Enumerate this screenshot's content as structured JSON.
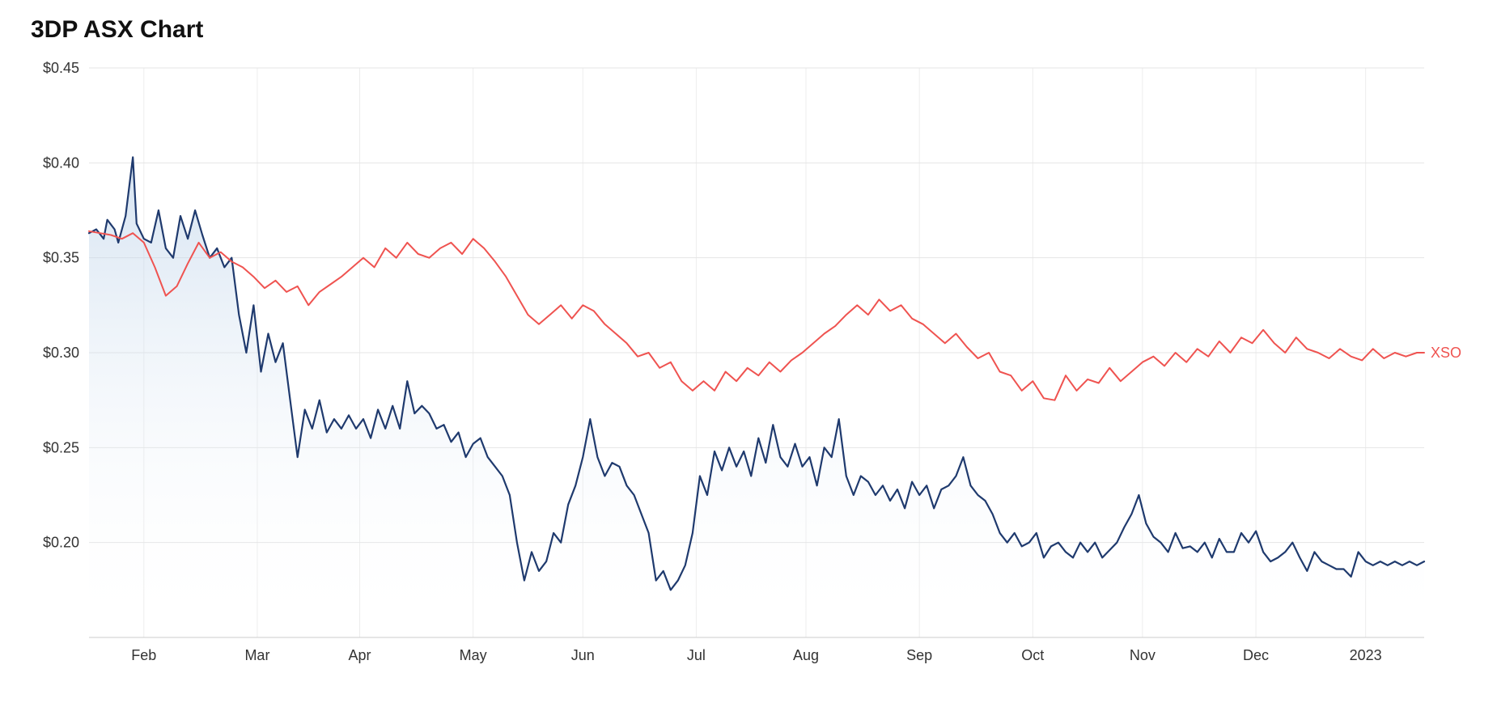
{
  "title": "3DP ASX Chart",
  "chart": {
    "type": "line",
    "background_color": "#ffffff",
    "grid_color": "#e5e5e5",
    "axis_color": "#cccccc",
    "tick_font_size": 18,
    "tick_color": "#333333",
    "y_axis": {
      "min": 0.15,
      "max": 0.45,
      "ticks": [
        0.2,
        0.25,
        0.3,
        0.35,
        0.4,
        0.45
      ],
      "tick_labels": [
        "$0.20",
        "$0.25",
        "$0.30",
        "$0.35",
        "$0.40",
        "$0.45"
      ]
    },
    "x_axis": {
      "min": 0,
      "max": 365,
      "ticks": [
        15,
        46,
        74,
        105,
        135,
        166,
        196,
        227,
        258,
        288,
        319,
        349
      ],
      "tick_labels": [
        "Feb",
        "Mar",
        "Apr",
        "May",
        "Jun",
        "Jul",
        "Aug",
        "Sep",
        "Oct",
        "Nov",
        "Dec",
        "2023"
      ]
    },
    "series": [
      {
        "name": "3DP",
        "label": "",
        "type": "area",
        "line_color": "#1f3a6e",
        "line_width": 2.2,
        "fill_top_color": "#b3cce6",
        "fill_bottom_color": "#ffffff",
        "fill_opacity_top": 0.55,
        "fill_opacity_bottom": 0.0,
        "data": [
          [
            0,
            0.363
          ],
          [
            2,
            0.365
          ],
          [
            4,
            0.36
          ],
          [
            5,
            0.37
          ],
          [
            7,
            0.365
          ],
          [
            8,
            0.358
          ],
          [
            10,
            0.372
          ],
          [
            12,
            0.403
          ],
          [
            13,
            0.368
          ],
          [
            15,
            0.36
          ],
          [
            17,
            0.358
          ],
          [
            19,
            0.375
          ],
          [
            21,
            0.355
          ],
          [
            23,
            0.35
          ],
          [
            25,
            0.372
          ],
          [
            27,
            0.36
          ],
          [
            29,
            0.375
          ],
          [
            31,
            0.362
          ],
          [
            33,
            0.35
          ],
          [
            35,
            0.355
          ],
          [
            37,
            0.345
          ],
          [
            39,
            0.35
          ],
          [
            41,
            0.32
          ],
          [
            43,
            0.3
          ],
          [
            45,
            0.325
          ],
          [
            47,
            0.29
          ],
          [
            49,
            0.31
          ],
          [
            51,
            0.295
          ],
          [
            53,
            0.305
          ],
          [
            55,
            0.275
          ],
          [
            57,
            0.245
          ],
          [
            59,
            0.27
          ],
          [
            61,
            0.26
          ],
          [
            63,
            0.275
          ],
          [
            65,
            0.258
          ],
          [
            67,
            0.265
          ],
          [
            69,
            0.26
          ],
          [
            71,
            0.267
          ],
          [
            73,
            0.26
          ],
          [
            75,
            0.265
          ],
          [
            77,
            0.255
          ],
          [
            79,
            0.27
          ],
          [
            81,
            0.26
          ],
          [
            83,
            0.272
          ],
          [
            85,
            0.26
          ],
          [
            87,
            0.285
          ],
          [
            89,
            0.268
          ],
          [
            91,
            0.272
          ],
          [
            93,
            0.268
          ],
          [
            95,
            0.26
          ],
          [
            97,
            0.262
          ],
          [
            99,
            0.253
          ],
          [
            101,
            0.258
          ],
          [
            103,
            0.245
          ],
          [
            105,
            0.252
          ],
          [
            107,
            0.255
          ],
          [
            109,
            0.245
          ],
          [
            111,
            0.24
          ],
          [
            113,
            0.235
          ],
          [
            115,
            0.225
          ],
          [
            117,
            0.2
          ],
          [
            119,
            0.18
          ],
          [
            121,
            0.195
          ],
          [
            123,
            0.185
          ],
          [
            125,
            0.19
          ],
          [
            127,
            0.205
          ],
          [
            129,
            0.2
          ],
          [
            131,
            0.22
          ],
          [
            133,
            0.23
          ],
          [
            135,
            0.245
          ],
          [
            137,
            0.265
          ],
          [
            139,
            0.245
          ],
          [
            141,
            0.235
          ],
          [
            143,
            0.242
          ],
          [
            145,
            0.24
          ],
          [
            147,
            0.23
          ],
          [
            149,
            0.225
          ],
          [
            151,
            0.215
          ],
          [
            153,
            0.205
          ],
          [
            155,
            0.18
          ],
          [
            157,
            0.185
          ],
          [
            159,
            0.175
          ],
          [
            161,
            0.18
          ],
          [
            163,
            0.188
          ],
          [
            165,
            0.205
          ],
          [
            167,
            0.235
          ],
          [
            169,
            0.225
          ],
          [
            171,
            0.248
          ],
          [
            173,
            0.238
          ],
          [
            175,
            0.25
          ],
          [
            177,
            0.24
          ],
          [
            179,
            0.248
          ],
          [
            181,
            0.235
          ],
          [
            183,
            0.255
          ],
          [
            185,
            0.242
          ],
          [
            187,
            0.262
          ],
          [
            189,
            0.245
          ],
          [
            191,
            0.24
          ],
          [
            193,
            0.252
          ],
          [
            195,
            0.24
          ],
          [
            197,
            0.245
          ],
          [
            199,
            0.23
          ],
          [
            201,
            0.25
          ],
          [
            203,
            0.245
          ],
          [
            205,
            0.265
          ],
          [
            207,
            0.235
          ],
          [
            209,
            0.225
          ],
          [
            211,
            0.235
          ],
          [
            213,
            0.232
          ],
          [
            215,
            0.225
          ],
          [
            217,
            0.23
          ],
          [
            219,
            0.222
          ],
          [
            221,
            0.228
          ],
          [
            223,
            0.218
          ],
          [
            225,
            0.232
          ],
          [
            227,
            0.225
          ],
          [
            229,
            0.23
          ],
          [
            231,
            0.218
          ],
          [
            233,
            0.228
          ],
          [
            235,
            0.23
          ],
          [
            237,
            0.235
          ],
          [
            239,
            0.245
          ],
          [
            241,
            0.23
          ],
          [
            243,
            0.225
          ],
          [
            245,
            0.222
          ],
          [
            247,
            0.215
          ],
          [
            249,
            0.205
          ],
          [
            251,
            0.2
          ],
          [
            253,
            0.205
          ],
          [
            255,
            0.198
          ],
          [
            257,
            0.2
          ],
          [
            259,
            0.205
          ],
          [
            261,
            0.192
          ],
          [
            263,
            0.198
          ],
          [
            265,
            0.2
          ],
          [
            267,
            0.195
          ],
          [
            269,
            0.192
          ],
          [
            271,
            0.2
          ],
          [
            273,
            0.195
          ],
          [
            275,
            0.2
          ],
          [
            277,
            0.192
          ],
          [
            279,
            0.196
          ],
          [
            281,
            0.2
          ],
          [
            283,
            0.208
          ],
          [
            285,
            0.215
          ],
          [
            287,
            0.225
          ],
          [
            289,
            0.21
          ],
          [
            291,
            0.203
          ],
          [
            293,
            0.2
          ],
          [
            295,
            0.195
          ],
          [
            297,
            0.205
          ],
          [
            299,
            0.197
          ],
          [
            301,
            0.198
          ],
          [
            303,
            0.195
          ],
          [
            305,
            0.2
          ],
          [
            307,
            0.192
          ],
          [
            309,
            0.202
          ],
          [
            311,
            0.195
          ],
          [
            313,
            0.195
          ],
          [
            315,
            0.205
          ],
          [
            317,
            0.2
          ],
          [
            319,
            0.206
          ],
          [
            321,
            0.195
          ],
          [
            323,
            0.19
          ],
          [
            325,
            0.192
          ],
          [
            327,
            0.195
          ],
          [
            329,
            0.2
          ],
          [
            331,
            0.192
          ],
          [
            333,
            0.185
          ],
          [
            335,
            0.195
          ],
          [
            337,
            0.19
          ],
          [
            339,
            0.188
          ],
          [
            341,
            0.186
          ],
          [
            343,
            0.186
          ],
          [
            345,
            0.182
          ],
          [
            347,
            0.195
          ],
          [
            349,
            0.19
          ],
          [
            351,
            0.188
          ],
          [
            353,
            0.19
          ],
          [
            355,
            0.188
          ],
          [
            357,
            0.19
          ],
          [
            359,
            0.188
          ],
          [
            361,
            0.19
          ],
          [
            363,
            0.188
          ],
          [
            365,
            0.19
          ]
        ]
      },
      {
        "name": "XSO",
        "label": "XSO",
        "type": "line",
        "line_color": "#ef5350",
        "line_width": 2.0,
        "data": [
          [
            0,
            0.364
          ],
          [
            3,
            0.363
          ],
          [
            6,
            0.362
          ],
          [
            9,
            0.36
          ],
          [
            12,
            0.363
          ],
          [
            15,
            0.358
          ],
          [
            18,
            0.345
          ],
          [
            21,
            0.33
          ],
          [
            24,
            0.335
          ],
          [
            27,
            0.347
          ],
          [
            30,
            0.358
          ],
          [
            33,
            0.35
          ],
          [
            36,
            0.353
          ],
          [
            39,
            0.348
          ],
          [
            42,
            0.345
          ],
          [
            45,
            0.34
          ],
          [
            48,
            0.334
          ],
          [
            51,
            0.338
          ],
          [
            54,
            0.332
          ],
          [
            57,
            0.335
          ],
          [
            60,
            0.325
          ],
          [
            63,
            0.332
          ],
          [
            66,
            0.336
          ],
          [
            69,
            0.34
          ],
          [
            72,
            0.345
          ],
          [
            75,
            0.35
          ],
          [
            78,
            0.345
          ],
          [
            81,
            0.355
          ],
          [
            84,
            0.35
          ],
          [
            87,
            0.358
          ],
          [
            90,
            0.352
          ],
          [
            93,
            0.35
          ],
          [
            96,
            0.355
          ],
          [
            99,
            0.358
          ],
          [
            102,
            0.352
          ],
          [
            105,
            0.36
          ],
          [
            108,
            0.355
          ],
          [
            111,
            0.348
          ],
          [
            114,
            0.34
          ],
          [
            117,
            0.33
          ],
          [
            120,
            0.32
          ],
          [
            123,
            0.315
          ],
          [
            126,
            0.32
          ],
          [
            129,
            0.325
          ],
          [
            132,
            0.318
          ],
          [
            135,
            0.325
          ],
          [
            138,
            0.322
          ],
          [
            141,
            0.315
          ],
          [
            144,
            0.31
          ],
          [
            147,
            0.305
          ],
          [
            150,
            0.298
          ],
          [
            153,
            0.3
          ],
          [
            156,
            0.292
          ],
          [
            159,
            0.295
          ],
          [
            162,
            0.285
          ],
          [
            165,
            0.28
          ],
          [
            168,
            0.285
          ],
          [
            171,
            0.28
          ],
          [
            174,
            0.29
          ],
          [
            177,
            0.285
          ],
          [
            180,
            0.292
          ],
          [
            183,
            0.288
          ],
          [
            186,
            0.295
          ],
          [
            189,
            0.29
          ],
          [
            192,
            0.296
          ],
          [
            195,
            0.3
          ],
          [
            198,
            0.305
          ],
          [
            201,
            0.31
          ],
          [
            204,
            0.314
          ],
          [
            207,
            0.32
          ],
          [
            210,
            0.325
          ],
          [
            213,
            0.32
          ],
          [
            216,
            0.328
          ],
          [
            219,
            0.322
          ],
          [
            222,
            0.325
          ],
          [
            225,
            0.318
          ],
          [
            228,
            0.315
          ],
          [
            231,
            0.31
          ],
          [
            234,
            0.305
          ],
          [
            237,
            0.31
          ],
          [
            240,
            0.303
          ],
          [
            243,
            0.297
          ],
          [
            246,
            0.3
          ],
          [
            249,
            0.29
          ],
          [
            252,
            0.288
          ],
          [
            255,
            0.28
          ],
          [
            258,
            0.285
          ],
          [
            261,
            0.276
          ],
          [
            264,
            0.275
          ],
          [
            267,
            0.288
          ],
          [
            270,
            0.28
          ],
          [
            273,
            0.286
          ],
          [
            276,
            0.284
          ],
          [
            279,
            0.292
          ],
          [
            282,
            0.285
          ],
          [
            285,
            0.29
          ],
          [
            288,
            0.295
          ],
          [
            291,
            0.298
          ],
          [
            294,
            0.293
          ],
          [
            297,
            0.3
          ],
          [
            300,
            0.295
          ],
          [
            303,
            0.302
          ],
          [
            306,
            0.298
          ],
          [
            309,
            0.306
          ],
          [
            312,
            0.3
          ],
          [
            315,
            0.308
          ],
          [
            318,
            0.305
          ],
          [
            321,
            0.312
          ],
          [
            324,
            0.305
          ],
          [
            327,
            0.3
          ],
          [
            330,
            0.308
          ],
          [
            333,
            0.302
          ],
          [
            336,
            0.3
          ],
          [
            339,
            0.297
          ],
          [
            342,
            0.302
          ],
          [
            345,
            0.298
          ],
          [
            348,
            0.296
          ],
          [
            351,
            0.302
          ],
          [
            354,
            0.297
          ],
          [
            357,
            0.3
          ],
          [
            360,
            0.298
          ],
          [
            363,
            0.3
          ],
          [
            365,
            0.3
          ]
        ]
      }
    ]
  }
}
